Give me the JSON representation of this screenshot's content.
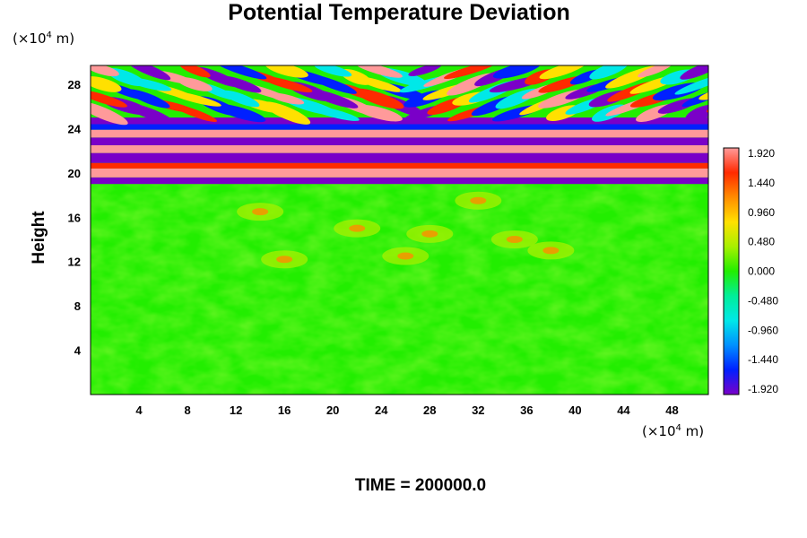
{
  "chart_data": {
    "type": "heatmap",
    "title": "Potential Temperature Deviation",
    "ylabel": "Height",
    "yunit": {
      "prefix": "(×10",
      "exp": "4",
      "suffix": " m)"
    },
    "xunit": {
      "prefix": "(×10",
      "exp": "4",
      "suffix": " m)"
    },
    "footer": "TIME = 200000.0",
    "xlim": [
      0,
      51
    ],
    "ylim": [
      0,
      29.7
    ],
    "x_ticks": [
      "4",
      "8",
      "12",
      "16",
      "20",
      "24",
      "28",
      "32",
      "36",
      "40",
      "44",
      "48"
    ],
    "y_ticks": [
      "4",
      "8",
      "12",
      "16",
      "20",
      "24",
      "28"
    ],
    "colorbar": {
      "labels": [
        "1.920",
        "1.440",
        "0.960",
        "0.480",
        "0.000",
        "-0.480",
        "-0.960",
        "-1.440",
        "-1.920"
      ],
      "range": [
        -1.92,
        1.92
      ],
      "colors": [
        "#ff9a9a",
        "#ff2a00",
        "#ff8c00",
        "#ffe000",
        "#a8f000",
        "#22ee00",
        "#00ee99",
        "#00e8e8",
        "#0090ff",
        "#0020ff",
        "#7a00c8"
      ]
    },
    "field_description": {
      "quiet_region_max_height": 19.0,
      "wave_region_min_height": 19.0,
      "background_value": 0.0
    }
  }
}
